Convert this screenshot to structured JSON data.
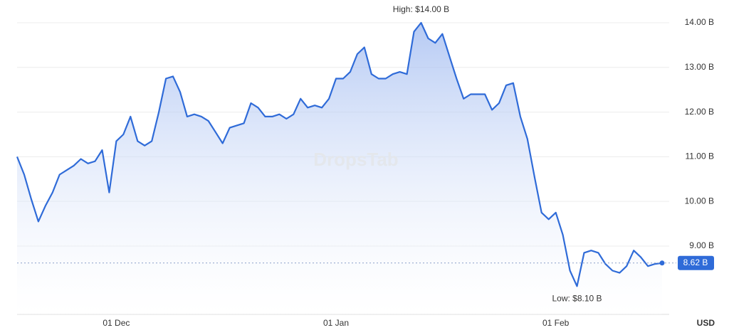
{
  "chart_data": {
    "type": "area",
    "categories": [
      null,
      null,
      null,
      null,
      null,
      null,
      null,
      null,
      null,
      null,
      null,
      null,
      null,
      null,
      "01 Dec",
      null,
      null,
      null,
      null,
      null,
      null,
      null,
      null,
      null,
      null,
      null,
      null,
      null,
      null,
      null,
      null,
      null,
      null,
      null,
      null,
      null,
      null,
      null,
      null,
      null,
      null,
      null,
      null,
      null,
      null,
      "01 Jan",
      null,
      null,
      null,
      null,
      null,
      null,
      null,
      null,
      null,
      null,
      null,
      null,
      null,
      null,
      null,
      null,
      null,
      null,
      null,
      null,
      null,
      null,
      null,
      null,
      null,
      null,
      null,
      null,
      null,
      null,
      "01 Feb",
      null,
      null,
      null,
      null,
      null,
      null,
      null,
      null,
      null,
      null,
      null,
      null,
      null,
      null,
      null
    ],
    "series": [
      {
        "name": "USD",
        "color": "#2f6bd8",
        "values": [
          11.0,
          10.6,
          10.05,
          9.55,
          9.9,
          10.2,
          10.6,
          10.7,
          10.8,
          10.95,
          10.85,
          10.9,
          11.15,
          10.2,
          11.35,
          11.5,
          11.9,
          11.35,
          11.25,
          11.35,
          12.0,
          12.75,
          12.8,
          12.45,
          11.9,
          11.95,
          11.9,
          11.8,
          11.55,
          11.3,
          11.65,
          11.7,
          11.75,
          12.2,
          12.1,
          11.9,
          11.9,
          11.95,
          11.85,
          11.95,
          12.3,
          12.1,
          12.15,
          12.1,
          12.3,
          12.75,
          12.75,
          12.9,
          13.3,
          13.45,
          12.85,
          12.75,
          12.75,
          12.85,
          12.9,
          12.85,
          13.8,
          14.0,
          13.65,
          13.55,
          13.75,
          13.25,
          12.75,
          12.3,
          12.4,
          12.4,
          12.4,
          12.05,
          12.2,
          12.6,
          12.65,
          11.9,
          11.4,
          10.55,
          9.75,
          9.6,
          9.75,
          9.25,
          8.45,
          8.1,
          8.85,
          8.9,
          8.85,
          8.6,
          8.45,
          8.4,
          8.55,
          8.9,
          8.75,
          8.55,
          8.6,
          8.62
        ]
      }
    ],
    "ylim": [
      7.47,
      14.51
    ],
    "yticks": [
      {
        "value": 9,
        "label": "9.00 B"
      },
      {
        "value": 10,
        "label": "10.00 B"
      },
      {
        "value": 11,
        "label": "11.00 B"
      },
      {
        "value": 12,
        "label": "12.00 B"
      },
      {
        "value": 13,
        "label": "13.00 B"
      },
      {
        "value": 14,
        "label": "14.00 B"
      }
    ],
    "grid": true,
    "high_label": "High: $14.00 B",
    "low_label": "Low: $8.10 B",
    "current_label": "8.62 B",
    "unit_label": "USD",
    "watermark": "DropsTab"
  }
}
